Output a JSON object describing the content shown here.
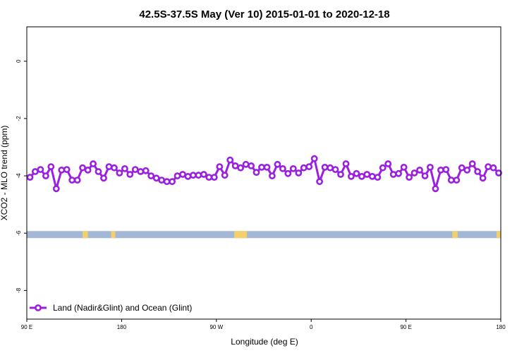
{
  "chart_data": {
    "type": "line",
    "title": "42.5S-37.5S May (Ver 10)   2015-01-01 to 2020-12-18",
    "xlabel": "Longitude (deg E)",
    "ylabel": "XCO2 - MLO trend (ppm)",
    "x_ticks": [
      {
        "value": 90,
        "label": "90 E"
      },
      {
        "value": 180,
        "label": "180"
      },
      {
        "value": 270,
        "label": "90 W"
      },
      {
        "value": 360,
        "label": "0"
      },
      {
        "value": 450,
        "label": "90 E"
      },
      {
        "value": 540,
        "label": "180"
      }
    ],
    "y_ticks": [
      0,
      -2,
      -4,
      -6,
      -8
    ],
    "xlim": [
      90,
      540
    ],
    "ylim": [
      -9.0,
      1.2
    ],
    "grid": false,
    "legend_position": "bottom-left",
    "series": [
      {
        "name": "Land (Nadir&Glint) and Ocean (Glint)",
        "color": "#9b1fe0",
        "x": [
          93,
          98,
          103,
          108,
          113,
          118,
          123,
          128,
          133,
          138,
          143,
          148,
          153,
          158,
          163,
          168,
          173,
          178,
          183,
          188,
          193,
          198,
          203,
          208,
          213,
          218,
          223,
          228,
          233,
          238,
          243,
          248,
          253,
          258,
          263,
          268,
          273,
          278,
          283,
          288,
          293,
          298,
          303,
          308,
          313,
          318,
          323,
          328,
          333,
          338,
          343,
          348,
          353,
          358,
          363,
          368,
          373,
          378,
          383,
          388,
          393,
          398,
          403,
          408,
          413,
          418,
          423,
          428,
          433,
          438,
          443,
          448,
          453,
          458,
          463,
          468,
          473,
          478,
          483,
          488,
          493,
          498,
          503,
          508,
          513,
          518,
          523,
          528,
          533,
          538
        ],
        "y": [
          -4.05,
          -3.85,
          -3.78,
          -4.0,
          -3.68,
          -4.45,
          -3.8,
          -3.78,
          -4.15,
          -4.15,
          -3.72,
          -3.8,
          -3.58,
          -3.85,
          -4.08,
          -3.68,
          -3.72,
          -3.9,
          -3.75,
          -3.95,
          -3.78,
          -3.85,
          -3.82,
          -4.0,
          -4.08,
          -4.15,
          -4.2,
          -4.2,
          -4.0,
          -3.95,
          -4.02,
          -3.98,
          -3.98,
          -3.95,
          -4.05,
          -4.05,
          -3.68,
          -3.98,
          -3.45,
          -3.65,
          -3.72,
          -3.6,
          -3.65,
          -3.88,
          -3.7,
          -3.7,
          -4.0,
          -3.6,
          -3.75,
          -3.92,
          -3.75,
          -3.9,
          -3.72,
          -3.68,
          -3.4,
          -4.2,
          -3.7,
          -3.72,
          -3.78,
          -3.95,
          -3.58,
          -4.02,
          -3.92,
          -4.02,
          -3.95,
          -4.02,
          -4.05,
          -3.72,
          -3.58,
          -3.95,
          -3.92,
          -3.7,
          -4.05,
          -3.9,
          -3.8,
          -4.0,
          -3.7,
          -4.45,
          -3.8,
          -3.78,
          -4.15,
          -4.15,
          -3.72,
          -3.8,
          -3.58,
          -3.85,
          -4.08,
          -3.68,
          -3.72,
          -3.9
        ]
      }
    ],
    "surface_band": {
      "y_value": -6.05,
      "ocean_color": "#a3b7d6",
      "land_color": "#f5cf6b",
      "land_segments": [
        [
          143,
          148
        ],
        [
          170,
          174
        ],
        [
          287,
          299
        ],
        [
          494,
          499
        ],
        [
          536,
          540
        ]
      ]
    }
  }
}
